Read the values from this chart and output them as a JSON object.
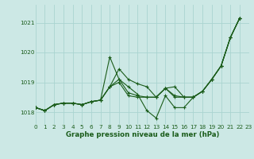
{
  "bg_color": "#cce8e5",
  "grid_color": "#aad4d0",
  "line_color": "#1a5c1a",
  "title": "Graphe pression niveau de la mer (hPa)",
  "xlim": [
    0,
    23
  ],
  "ylim": [
    1017.6,
    1021.6
  ],
  "yticks": [
    1018,
    1019,
    1020,
    1021
  ],
  "xtick_labels": [
    "0",
    "1",
    "2",
    "3",
    "4",
    "5",
    "6",
    "7",
    "8",
    "9",
    "10",
    "11",
    "12",
    "13",
    "14",
    "15",
    "16",
    "17",
    "18",
    "19",
    "20",
    "21",
    "22",
    "23"
  ],
  "series": [
    {
      "x": [
        0,
        1,
        2,
        3,
        4,
        5,
        6,
        7,
        8,
        9,
        10,
        11,
        12,
        13,
        14,
        15,
        16,
        17,
        18,
        19,
        20,
        21,
        22
      ],
      "y": [
        1018.15,
        1018.05,
        1018.25,
        1018.3,
        1018.3,
        1018.25,
        1018.35,
        1018.4,
        1018.85,
        1019.45,
        1019.1,
        1018.95,
        1018.85,
        1018.5,
        1018.8,
        1018.85,
        1018.5,
        1018.5,
        1018.7,
        1019.1,
        1019.55,
        1020.5,
        1021.15
      ]
    },
    {
      "x": [
        0,
        1,
        2,
        3,
        4,
        5,
        6,
        7,
        8,
        9,
        10,
        11,
        12,
        13,
        14,
        15,
        16,
        17,
        18,
        19,
        20,
        21,
        22
      ],
      "y": [
        1018.15,
        1018.05,
        1018.25,
        1018.3,
        1018.3,
        1018.25,
        1018.35,
        1018.4,
        1019.85,
        1019.1,
        1018.85,
        1018.6,
        1018.05,
        1017.8,
        1018.55,
        1018.15,
        1018.15,
        1018.5,
        1018.7,
        1019.1,
        1019.55,
        1020.5,
        1021.15
      ]
    },
    {
      "x": [
        0,
        1,
        2,
        3,
        4,
        5,
        6,
        7,
        8,
        9,
        10,
        11,
        12,
        13,
        14,
        15,
        16,
        17,
        18,
        19,
        20,
        21,
        22
      ],
      "y": [
        1018.15,
        1018.05,
        1018.25,
        1018.3,
        1018.3,
        1018.25,
        1018.35,
        1018.4,
        1018.85,
        1019.1,
        1018.65,
        1018.55,
        1018.5,
        1018.5,
        1018.8,
        1018.55,
        1018.5,
        1018.5,
        1018.7,
        1019.1,
        1019.55,
        1020.5,
        1021.15
      ]
    },
    {
      "x": [
        0,
        1,
        2,
        3,
        4,
        5,
        6,
        7,
        8,
        9,
        10,
        11,
        12,
        13,
        14,
        15,
        16,
        17,
        18,
        19,
        20,
        21,
        22
      ],
      "y": [
        1018.15,
        1018.05,
        1018.25,
        1018.3,
        1018.3,
        1018.25,
        1018.35,
        1018.4,
        1018.85,
        1019.0,
        1018.55,
        1018.5,
        1018.5,
        1018.5,
        1018.8,
        1018.5,
        1018.5,
        1018.5,
        1018.7,
        1019.1,
        1019.55,
        1020.5,
        1021.15
      ]
    }
  ]
}
